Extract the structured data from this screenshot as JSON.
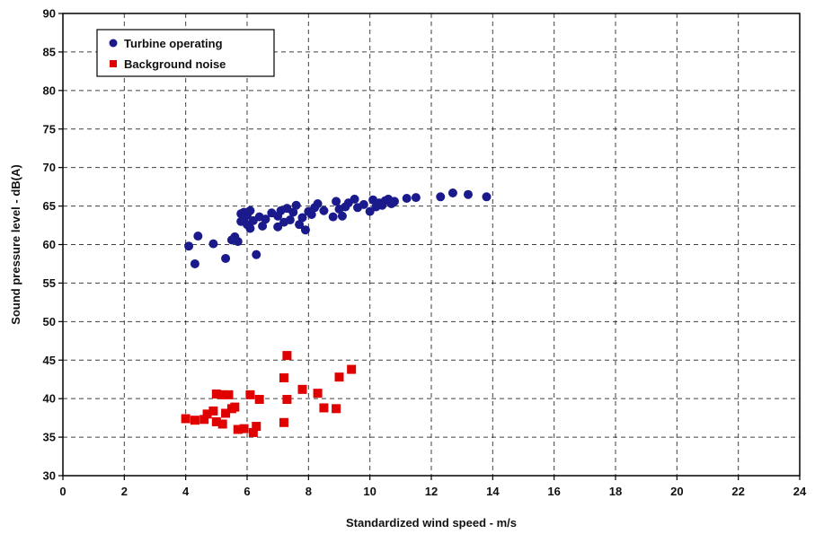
{
  "chart_data": {
    "type": "scatter",
    "title": "",
    "xlabel": "Standardized wind speed - m/s",
    "ylabel": "Sound pressure level - dB(A)",
    "xlim": [
      0,
      24
    ],
    "ylim": [
      30,
      90
    ],
    "xticks": [
      0,
      2,
      4,
      6,
      8,
      10,
      12,
      14,
      16,
      18,
      20,
      22,
      24
    ],
    "yticks": [
      30,
      35,
      40,
      45,
      50,
      55,
      60,
      65,
      70,
      75,
      80,
      85,
      90
    ],
    "grid": true,
    "legend_position": "top-left",
    "series": [
      {
        "name": "Turbine operating",
        "color": "#1a1a8c",
        "marker": "circle",
        "points": [
          [
            4.1,
            59.8
          ],
          [
            4.3,
            57.5
          ],
          [
            4.4,
            61.1
          ],
          [
            4.9,
            60.1
          ],
          [
            5.3,
            58.2
          ],
          [
            5.5,
            60.6
          ],
          [
            5.6,
            61.0
          ],
          [
            5.7,
            60.4
          ],
          [
            5.8,
            63.0
          ],
          [
            5.8,
            64.0
          ],
          [
            5.9,
            63.4
          ],
          [
            5.9,
            64.2
          ],
          [
            6.0,
            62.6
          ],
          [
            6.0,
            63.8
          ],
          [
            6.1,
            64.4
          ],
          [
            6.1,
            62.1
          ],
          [
            6.2,
            63.1
          ],
          [
            6.3,
            58.7
          ],
          [
            6.4,
            63.6
          ],
          [
            6.5,
            62.4
          ],
          [
            6.6,
            63.3
          ],
          [
            6.8,
            64.1
          ],
          [
            7.0,
            62.3
          ],
          [
            7.0,
            63.7
          ],
          [
            7.1,
            64.4
          ],
          [
            7.2,
            62.9
          ],
          [
            7.3,
            64.7
          ],
          [
            7.4,
            63.2
          ],
          [
            7.5,
            64.2
          ],
          [
            7.6,
            65.1
          ],
          [
            7.7,
            62.6
          ],
          [
            7.8,
            63.5
          ],
          [
            7.9,
            61.9
          ],
          [
            8.0,
            64.3
          ],
          [
            8.1,
            63.9
          ],
          [
            8.2,
            64.8
          ],
          [
            8.3,
            65.3
          ],
          [
            8.5,
            64.4
          ],
          [
            8.8,
            63.6
          ],
          [
            8.9,
            65.6
          ],
          [
            9.0,
            64.6
          ],
          [
            9.1,
            63.7
          ],
          [
            9.2,
            64.9
          ],
          [
            9.3,
            65.4
          ],
          [
            9.5,
            65.9
          ],
          [
            9.6,
            64.8
          ],
          [
            9.8,
            65.2
          ],
          [
            10.0,
            64.3
          ],
          [
            10.1,
            65.8
          ],
          [
            10.2,
            64.9
          ],
          [
            10.3,
            65.4
          ],
          [
            10.4,
            65.1
          ],
          [
            10.5,
            65.7
          ],
          [
            10.6,
            65.9
          ],
          [
            10.7,
            65.3
          ],
          [
            10.8,
            65.6
          ],
          [
            11.2,
            66.0
          ],
          [
            11.5,
            66.1
          ],
          [
            12.3,
            66.2
          ],
          [
            12.7,
            66.7
          ],
          [
            13.2,
            66.5
          ],
          [
            13.8,
            66.2
          ]
        ]
      },
      {
        "name": "Background noise",
        "color": "#e00000",
        "marker": "square",
        "points": [
          [
            4.0,
            37.4
          ],
          [
            4.3,
            37.2
          ],
          [
            4.6,
            37.3
          ],
          [
            4.7,
            38.0
          ],
          [
            4.9,
            38.4
          ],
          [
            5.0,
            37.0
          ],
          [
            5.0,
            40.6
          ],
          [
            5.2,
            40.5
          ],
          [
            5.2,
            36.7
          ],
          [
            5.3,
            38.1
          ],
          [
            5.4,
            40.5
          ],
          [
            5.5,
            38.7
          ],
          [
            5.6,
            38.9
          ],
          [
            5.7,
            36.0
          ],
          [
            5.9,
            36.1
          ],
          [
            6.1,
            40.5
          ],
          [
            6.2,
            35.6
          ],
          [
            6.3,
            36.4
          ],
          [
            6.4,
            39.9
          ],
          [
            7.2,
            36.9
          ],
          [
            7.2,
            42.7
          ],
          [
            7.3,
            45.6
          ],
          [
            7.3,
            39.9
          ],
          [
            7.8,
            41.2
          ],
          [
            8.3,
            40.7
          ],
          [
            8.5,
            38.8
          ],
          [
            8.9,
            38.7
          ],
          [
            9.0,
            42.8
          ],
          [
            9.4,
            43.8
          ]
        ]
      }
    ]
  }
}
